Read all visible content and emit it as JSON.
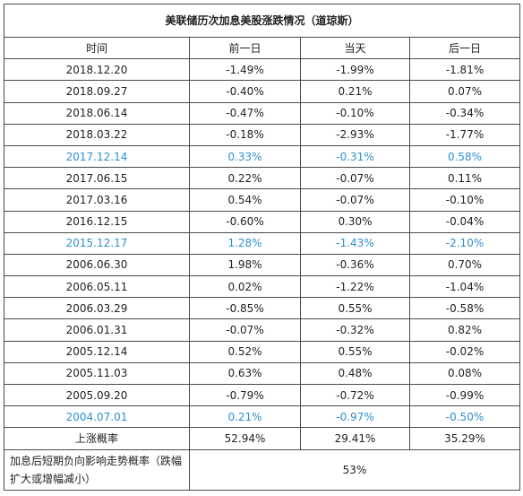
{
  "title": "美联储历次加息美股涨跌情况（道琼斯）",
  "headers": [
    "时间",
    "前一日",
    "当天",
    "后一日"
  ],
  "highlight_color": "#2f8fd0",
  "rows": [
    {
      "date": "2018.12.20",
      "prev": "-1.49%",
      "day": "-1.99%",
      "next": "-1.81%",
      "highlight": false
    },
    {
      "date": "2018.09.27",
      "prev": "-0.40%",
      "day": "0.21%",
      "next": "0.07%",
      "highlight": false
    },
    {
      "date": "2018.06.14",
      "prev": "-0.47%",
      "day": "-0.10%",
      "next": "-0.34%",
      "highlight": false
    },
    {
      "date": "2018.03.22",
      "prev": "-0.18%",
      "day": "-2.93%",
      "next": "-1.77%",
      "highlight": false
    },
    {
      "date": "2017.12.14",
      "prev": "0.33%",
      "day": "-0.31%",
      "next": "0.58%",
      "highlight": true
    },
    {
      "date": "2017.06.15",
      "prev": "0.22%",
      "day": "-0.07%",
      "next": "0.11%",
      "highlight": false
    },
    {
      "date": "2017.03.16",
      "prev": "0.54%",
      "day": "-0.07%",
      "next": "-0.10%",
      "highlight": false
    },
    {
      "date": "2016.12.15",
      "prev": "-0.60%",
      "day": "0.30%",
      "next": "-0.04%",
      "highlight": false
    },
    {
      "date": "2015.12.17",
      "prev": "1.28%",
      "day": "-1.43%",
      "next": "-2.10%",
      "highlight": true
    },
    {
      "date": "2006.06.30",
      "prev": "1.98%",
      "day": "-0.36%",
      "next": "0.70%",
      "highlight": false
    },
    {
      "date": "2006.05.11",
      "prev": "0.02%",
      "day": "-1.22%",
      "next": "-1.04%",
      "highlight": false
    },
    {
      "date": "2006.03.29",
      "prev": "-0.85%",
      "day": "0.55%",
      "next": "-0.58%",
      "highlight": false
    },
    {
      "date": "2006.01.31",
      "prev": "-0.07%",
      "day": "-0.32%",
      "next": "0.82%",
      "highlight": false
    },
    {
      "date": "2005.12.14",
      "prev": "0.52%",
      "day": "0.55%",
      "next": "-0.02%",
      "highlight": false
    },
    {
      "date": "2005.11.03",
      "prev": "0.63%",
      "day": "0.48%",
      "next": "0.08%",
      "highlight": false
    },
    {
      "date": "2005.09.20",
      "prev": "-0.79%",
      "day": "-0.72%",
      "next": "-0.99%",
      "highlight": false
    },
    {
      "date": "2004.07.01",
      "prev": "0.21%",
      "day": "-0.97%",
      "next": "-0.50%",
      "highlight": true
    }
  ],
  "summary": {
    "label": "上涨概率",
    "prev": "52.94%",
    "day": "29.41%",
    "next": "35.29%"
  },
  "note": {
    "label": "加息后短期负向影响走势概率（跌幅扩大或增幅减小）",
    "value": "53%"
  }
}
